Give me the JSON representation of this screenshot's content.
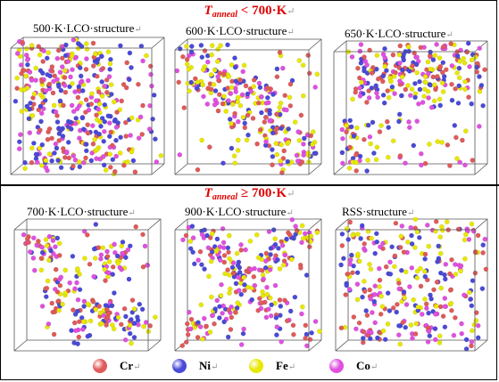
{
  "headings": {
    "top": {
      "var": "T",
      "sub": "anneal",
      "rest": " < 700·K",
      "mark": "↵"
    },
    "bottom": {
      "var": "T",
      "sub": "anneal",
      "rest": " ≥ 700·K",
      "mark": "↵"
    }
  },
  "panels": [
    {
      "label": "500·K·LCO·structure",
      "mark": "↵",
      "pattern": "band"
    },
    {
      "label": "600·K·LCO·structure",
      "mark": "↵",
      "pattern": "band2"
    },
    {
      "label": "650·K·LCO·structure",
      "mark": "↵",
      "pattern": "band3"
    },
    {
      "label": "700·K·LCO·structure",
      "mark": "↵",
      "pattern": "clusters"
    },
    {
      "label": "900·K·LCO·structure",
      "mark": "↵",
      "pattern": "x"
    },
    {
      "label": "RSS·structure",
      "mark": "↵",
      "pattern": "random"
    }
  ],
  "legend": [
    {
      "name": "Cr",
      "color": "#e05a5a",
      "mark": "↵"
    },
    {
      "name": "Ni",
      "color": "#4a4ad8",
      "mark": "↵"
    },
    {
      "name": "Fe",
      "color": "#e8e800",
      "mark": "↵"
    },
    {
      "name": "Co",
      "color": "#e050e0",
      "mark": "↵"
    }
  ]
}
